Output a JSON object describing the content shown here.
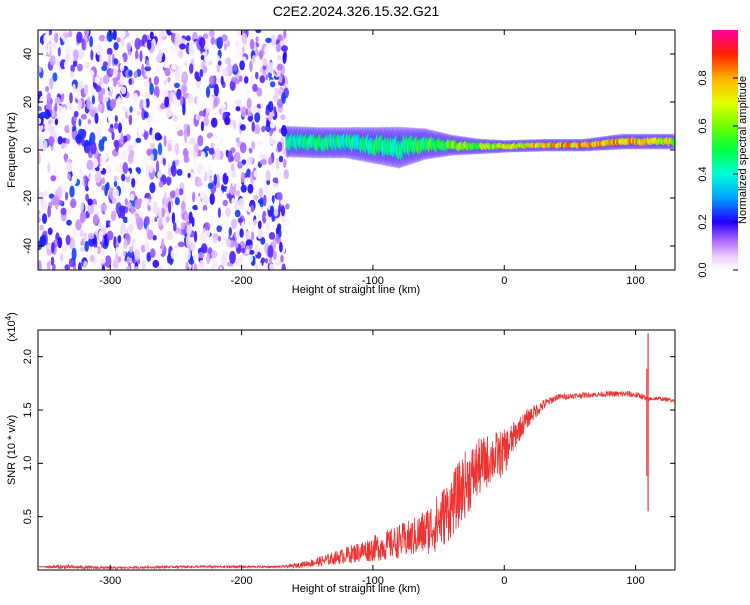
{
  "title": "C2E2.2024.326.15.32.G21",
  "chart_data": [
    {
      "type": "heatmap",
      "title": "C2E2.2024.326.15.32.G21",
      "xlabel": "Height of straight line (km)",
      "ylabel": "Frequency (Hz)",
      "xlim": [
        -355,
        130
      ],
      "ylim": [
        -50,
        50
      ],
      "xticks": [
        -300,
        -200,
        -100,
        0,
        100
      ],
      "xtick_labels": [
        "-300",
        "-200",
        "-100",
        "0",
        "100"
      ],
      "yticks": [
        -40,
        -20,
        0,
        20,
        40
      ],
      "ytick_labels": [
        "-40",
        "-20",
        "0",
        "20",
        "40"
      ],
      "grid": false,
      "noise_region": {
        "x_range": [
          -355,
          -165
        ],
        "y_range": [
          -50,
          50
        ],
        "amplitude_range": [
          0.0,
          0.25
        ]
      },
      "signal_band": [
        {
          "x": -165,
          "center": 3.5,
          "halfwidth": 3.0,
          "amplitude": 0.45
        },
        {
          "x": -140,
          "center": 3.0,
          "halfwidth": 3.0,
          "amplitude": 0.5
        },
        {
          "x": -120,
          "center": 3.0,
          "halfwidth": 3.0,
          "amplitude": 0.45
        },
        {
          "x": -100,
          "center": 2.0,
          "halfwidth": 3.5,
          "amplitude": 0.5
        },
        {
          "x": -80,
          "center": 1.0,
          "halfwidth": 4.0,
          "amplitude": 0.5
        },
        {
          "x": -60,
          "center": 2.5,
          "halfwidth": 3.0,
          "amplitude": 0.55
        },
        {
          "x": -40,
          "center": 2.0,
          "halfwidth": 2.0,
          "amplitude": 0.6
        },
        {
          "x": -20,
          "center": 1.5,
          "halfwidth": 1.5,
          "amplitude": 0.65
        },
        {
          "x": 0,
          "center": 1.5,
          "halfwidth": 1.2,
          "amplitude": 0.7
        },
        {
          "x": 30,
          "center": 2.0,
          "halfwidth": 1.2,
          "amplitude": 0.8
        },
        {
          "x": 60,
          "center": 2.0,
          "halfwidth": 1.2,
          "amplitude": 0.85
        },
        {
          "x": 90,
          "center": 3.5,
          "halfwidth": 1.5,
          "amplitude": 0.8
        },
        {
          "x": 130,
          "center": 3.5,
          "halfwidth": 1.5,
          "amplitude": 0.7
        }
      ],
      "colorbar": {
        "label": "Normalized spectral amplitude",
        "range": [
          0,
          1
        ],
        "ticks": [
          0.0,
          0.2,
          0.4,
          0.6,
          0.8
        ],
        "tick_labels": [
          "0.0",
          "0.2",
          "0.4",
          "0.6",
          "0.8"
        ]
      }
    },
    {
      "type": "line",
      "xlabel": "Height of straight line (km)",
      "ylabel": "SNR (10 * v/v)",
      "y_multiplier": "(x10",
      "y_multiplier_exp": "4",
      "y_multiplier_close": ")",
      "xlim": [
        -355,
        130
      ],
      "ylim": [
        0,
        2.25
      ],
      "xticks": [
        -300,
        -200,
        -100,
        0,
        100
      ],
      "xtick_labels": [
        "-300",
        "-200",
        "-100",
        "0",
        "100"
      ],
      "yticks": [
        0.5,
        1.0,
        1.5,
        2.0
      ],
      "ytick_labels": [
        "0.5",
        "1.0",
        "1.5",
        "2.0"
      ],
      "grid": false,
      "color": "#ee3333",
      "series": [
        {
          "x": [
            -355,
            -340,
            -300,
            -250,
            -200,
            -170,
            -160,
            -150,
            -140,
            -130,
            -120,
            -110,
            -100,
            -90,
            -80,
            -70,
            -60,
            -50,
            -40,
            -30,
            -20,
            -10,
            0,
            10,
            20,
            30,
            40,
            60,
            80,
            95,
            105,
            108,
            110,
            115,
            130
          ],
          "y": [
            0.03,
            0.03,
            0.02,
            0.03,
            0.03,
            0.03,
            0.04,
            0.06,
            0.08,
            0.11,
            0.14,
            0.17,
            0.2,
            0.23,
            0.27,
            0.3,
            0.36,
            0.45,
            0.6,
            0.8,
            0.95,
            1.05,
            1.1,
            1.3,
            1.45,
            1.55,
            1.62,
            1.64,
            1.65,
            1.65,
            1.63,
            1.6,
            1.6,
            1.61,
            1.59
          ],
          "noise": [
            0.0,
            0.02,
            0.01,
            0.01,
            0.01,
            0.01,
            0.02,
            0.03,
            0.05,
            0.06,
            0.08,
            0.1,
            0.12,
            0.14,
            0.16,
            0.18,
            0.22,
            0.28,
            0.3,
            0.32,
            0.28,
            0.24,
            0.22,
            0.12,
            0.08,
            0.05,
            0.03,
            0.025,
            0.025,
            0.03,
            0.03,
            0.03,
            0.02,
            0.02,
            0.015
          ]
        }
      ],
      "spikes": [
        {
          "x": 109.5,
          "ymax": 2.22,
          "ymin": 0.55
        }
      ]
    }
  ]
}
